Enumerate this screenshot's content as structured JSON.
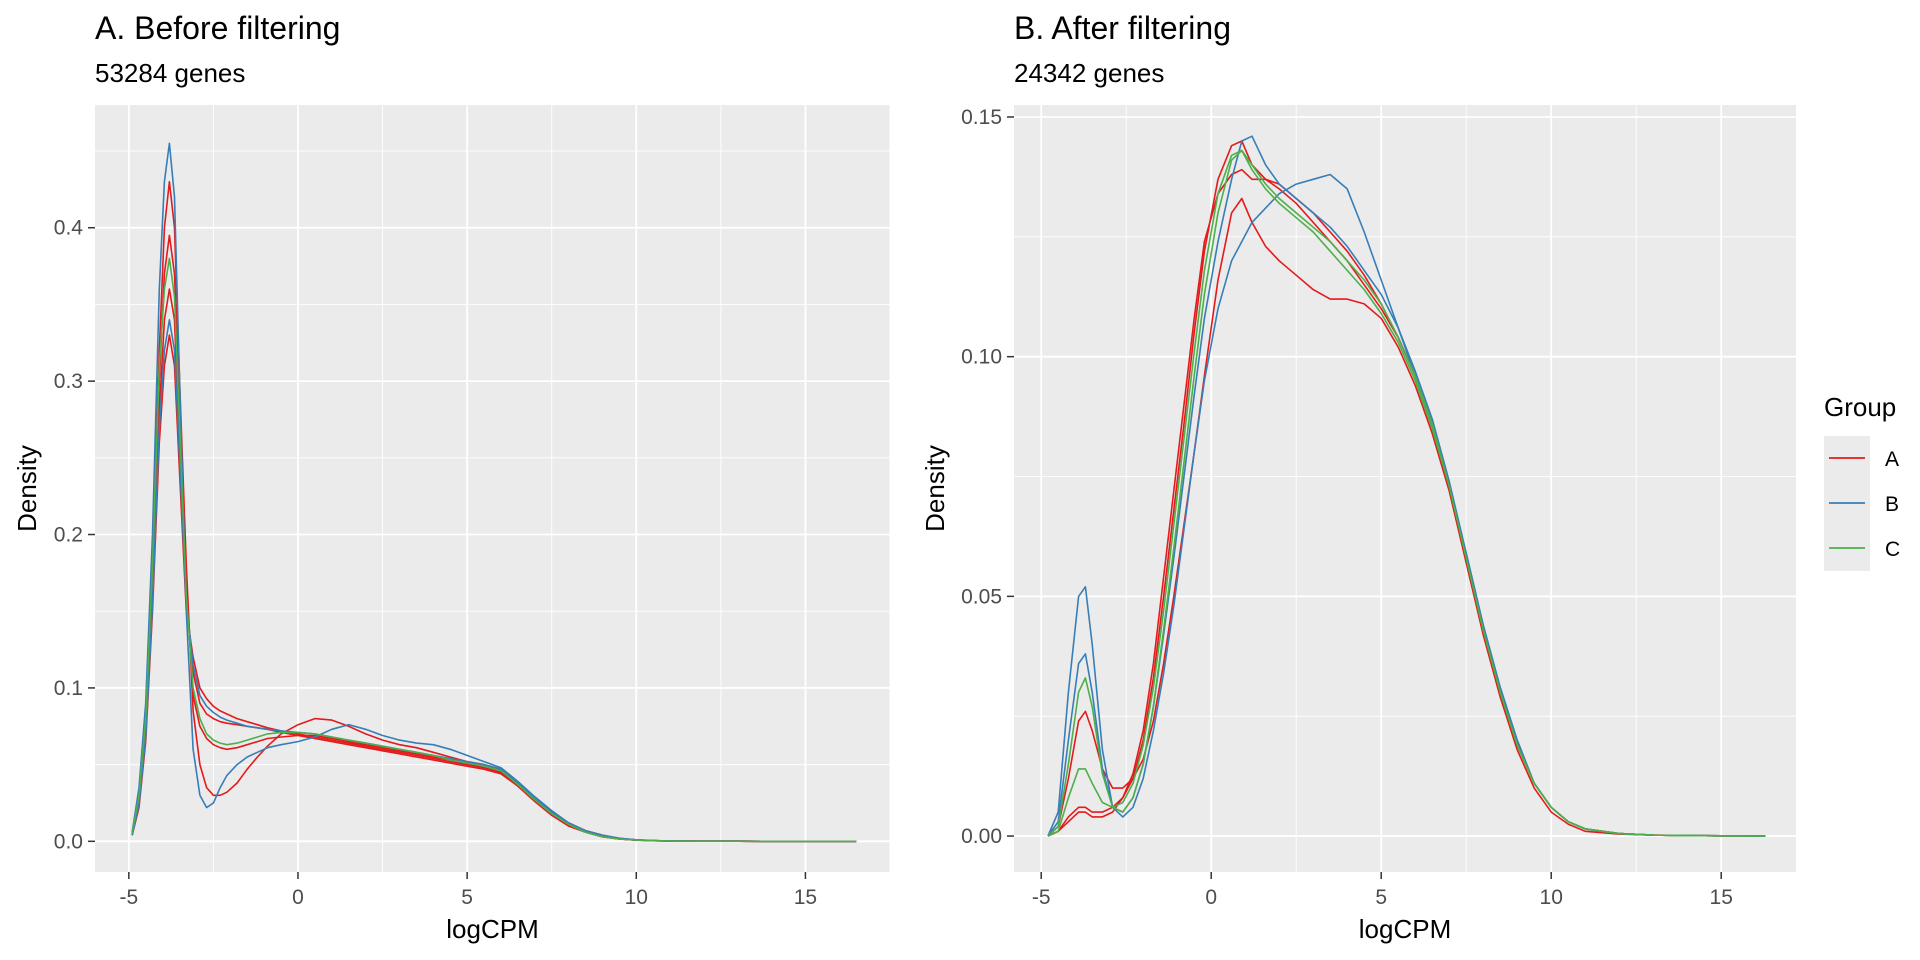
{
  "chart_data": [
    {
      "type": "line",
      "title": "A. Before filtering",
      "subtitle": "53284 genes",
      "xlabel": "logCPM",
      "ylabel": "Density",
      "xlim": [
        -6.0,
        17.5
      ],
      "ylim": [
        -0.02,
        0.48
      ],
      "x_ticks": [
        "-5",
        "0",
        "5",
        "10",
        "15"
      ],
      "y_ticks": [
        "0.0",
        "0.1",
        "0.2",
        "0.3",
        "0.4"
      ],
      "grid": true,
      "x": [
        -4.9,
        -4.7,
        -4.5,
        -4.3,
        -4.1,
        -3.95,
        -3.8,
        -3.65,
        -3.5,
        -3.3,
        -3.1,
        -2.9,
        -2.7,
        -2.5,
        -2.3,
        -2.1,
        -1.8,
        -1.5,
        -1.2,
        -0.9,
        -0.5,
        0,
        0.5,
        1,
        1.5,
        2,
        2.5,
        3,
        3.5,
        4,
        4.5,
        5,
        5.5,
        6,
        6.5,
        7,
        7.5,
        8,
        8.5,
        9,
        9.5,
        10,
        10.5,
        11,
        12,
        13,
        14,
        15,
        16,
        16.5
      ],
      "series": [
        {
          "group": "A",
          "values": [
            0.005,
            0.03,
            0.08,
            0.18,
            0.32,
            0.4,
            0.43,
            0.4,
            0.3,
            0.18,
            0.085,
            0.05,
            0.035,
            0.03,
            0.03,
            0.032,
            0.038,
            0.047,
            0.055,
            0.062,
            0.07,
            0.076,
            0.08,
            0.079,
            0.075,
            0.07,
            0.066,
            0.063,
            0.061,
            0.058,
            0.055,
            0.052,
            0.05,
            0.047,
            0.038,
            0.028,
            0.019,
            0.012,
            0.007,
            0.004,
            0.002,
            0.001,
            0.0005,
            0.0002,
            0.0001,
            5e-05,
            0,
            0,
            0,
            0
          ]
        },
        {
          "group": "A",
          "values": [
            0.005,
            0.028,
            0.075,
            0.17,
            0.3,
            0.37,
            0.395,
            0.37,
            0.28,
            0.17,
            0.095,
            0.075,
            0.067,
            0.063,
            0.061,
            0.06,
            0.061,
            0.063,
            0.065,
            0.067,
            0.068,
            0.069,
            0.069,
            0.067,
            0.065,
            0.063,
            0.061,
            0.059,
            0.057,
            0.055,
            0.053,
            0.051,
            0.049,
            0.046,
            0.037,
            0.027,
            0.018,
            0.011,
            0.006,
            0.003,
            0.0015,
            0.0008,
            0.0004,
            0.0002,
            0.0001,
            5e-05,
            0,
            0,
            0,
            0
          ]
        },
        {
          "group": "A",
          "values": [
            0.004,
            0.025,
            0.07,
            0.16,
            0.28,
            0.34,
            0.36,
            0.34,
            0.26,
            0.16,
            0.11,
            0.09,
            0.083,
            0.08,
            0.078,
            0.077,
            0.076,
            0.075,
            0.074,
            0.073,
            0.071,
            0.069,
            0.067,
            0.065,
            0.063,
            0.061,
            0.059,
            0.057,
            0.055,
            0.053,
            0.051,
            0.049,
            0.047,
            0.044,
            0.036,
            0.026,
            0.017,
            0.01,
            0.006,
            0.003,
            0.0015,
            0.0008,
            0.0004,
            0.0002,
            0.0001,
            5e-05,
            0,
            0,
            0,
            0
          ]
        },
        {
          "group": "A",
          "values": [
            0.004,
            0.022,
            0.065,
            0.15,
            0.26,
            0.31,
            0.33,
            0.31,
            0.24,
            0.15,
            0.12,
            0.1,
            0.093,
            0.088,
            0.085,
            0.083,
            0.08,
            0.078,
            0.076,
            0.074,
            0.072,
            0.07,
            0.068,
            0.066,
            0.064,
            0.062,
            0.06,
            0.058,
            0.056,
            0.054,
            0.052,
            0.05,
            0.048,
            0.045,
            0.036,
            0.026,
            0.017,
            0.01,
            0.006,
            0.003,
            0.0015,
            0.0008,
            0.0004,
            0.0002,
            0.0001,
            5e-05,
            2e-05,
            1e-05,
            0,
            0
          ]
        },
        {
          "group": "B",
          "values": [
            0.006,
            0.035,
            0.09,
            0.2,
            0.36,
            0.43,
            0.455,
            0.42,
            0.3,
            0.15,
            0.06,
            0.03,
            0.022,
            0.025,
            0.035,
            0.043,
            0.05,
            0.055,
            0.058,
            0.061,
            0.063,
            0.065,
            0.068,
            0.073,
            0.076,
            0.073,
            0.069,
            0.066,
            0.064,
            0.063,
            0.06,
            0.056,
            0.052,
            0.048,
            0.039,
            0.029,
            0.02,
            0.012,
            0.007,
            0.004,
            0.002,
            0.001,
            0.0005,
            0.0002,
            0.0001,
            5e-05,
            2e-05,
            1e-05,
            0,
            0
          ]
        },
        {
          "group": "B",
          "values": [
            0.004,
            0.024,
            0.068,
            0.155,
            0.27,
            0.32,
            0.34,
            0.32,
            0.25,
            0.155,
            0.115,
            0.095,
            0.088,
            0.084,
            0.081,
            0.079,
            0.077,
            0.075,
            0.074,
            0.073,
            0.072,
            0.071,
            0.07,
            0.068,
            0.066,
            0.064,
            0.062,
            0.06,
            0.058,
            0.056,
            0.054,
            0.052,
            0.05,
            0.047,
            0.038,
            0.028,
            0.019,
            0.011,
            0.006,
            0.003,
            0.0015,
            0.0008,
            0.0004,
            0.0002,
            0.0001,
            5e-05,
            2e-05,
            1e-05,
            0,
            0
          ]
        },
        {
          "group": "C",
          "values": [
            0.005,
            0.03,
            0.08,
            0.18,
            0.31,
            0.36,
            0.38,
            0.355,
            0.27,
            0.16,
            0.1,
            0.08,
            0.07,
            0.066,
            0.064,
            0.063,
            0.064,
            0.066,
            0.068,
            0.07,
            0.071,
            0.071,
            0.07,
            0.068,
            0.066,
            0.064,
            0.062,
            0.06,
            0.058,
            0.056,
            0.053,
            0.051,
            0.049,
            0.046,
            0.037,
            0.027,
            0.018,
            0.011,
            0.006,
            0.003,
            0.0015,
            0.0008,
            0.0004,
            0.0002,
            0.0001,
            5e-05,
            0,
            0,
            0,
            0
          ]
        }
      ]
    },
    {
      "type": "line",
      "title": "B. After filtering",
      "subtitle": "24342 genes",
      "xlabel": "logCPM",
      "ylabel": "Density",
      "xlim": [
        -5.8,
        17.2
      ],
      "ylim": [
        -0.0075,
        0.1525
      ],
      "x_ticks": [
        "-5",
        "0",
        "5",
        "10",
        "15"
      ],
      "y_ticks": [
        "0.00",
        "0.05",
        "0.10",
        "0.15"
      ],
      "grid": true,
      "x": [
        -4.8,
        -4.5,
        -4.2,
        -3.9,
        -3.7,
        -3.5,
        -3.2,
        -2.9,
        -2.6,
        -2.3,
        -2,
        -1.7,
        -1.4,
        -1.1,
        -0.8,
        -0.5,
        -0.2,
        0.2,
        0.6,
        0.9,
        1.2,
        1.6,
        2,
        2.5,
        3,
        3.5,
        4,
        4.5,
        5,
        5.5,
        6,
        6.5,
        7,
        7.5,
        8,
        8.5,
        9,
        9.5,
        10,
        10.5,
        11,
        12,
        13,
        14,
        15,
        16.3
      ],
      "series": [
        {
          "group": "A",
          "values": [
            0,
            0.002,
            0.012,
            0.024,
            0.026,
            0.022,
            0.014,
            0.01,
            0.01,
            0.012,
            0.016,
            0.024,
            0.036,
            0.05,
            0.065,
            0.08,
            0.096,
            0.116,
            0.13,
            0.133,
            0.128,
            0.123,
            0.12,
            0.117,
            0.114,
            0.112,
            0.112,
            0.111,
            0.108,
            0.102,
            0.094,
            0.084,
            0.072,
            0.057,
            0.042,
            0.029,
            0.018,
            0.01,
            0.005,
            0.0025,
            0.001,
            0.0004,
            0.0002,
            0.0001,
            5e-05,
            0
          ]
        },
        {
          "group": "A",
          "values": [
            0,
            0.001,
            0.004,
            0.006,
            0.006,
            0.005,
            0.005,
            0.006,
            0.008,
            0.012,
            0.02,
            0.033,
            0.05,
            0.068,
            0.086,
            0.105,
            0.122,
            0.137,
            0.144,
            0.145,
            0.14,
            0.137,
            0.135,
            0.132,
            0.128,
            0.124,
            0.12,
            0.115,
            0.11,
            0.104,
            0.096,
            0.086,
            0.073,
            0.058,
            0.043,
            0.03,
            0.019,
            0.011,
            0.006,
            0.003,
            0.0015,
            0.0005,
            0.0002,
            0.0001,
            5e-05,
            0
          ]
        },
        {
          "group": "A",
          "values": [
            0,
            0.001,
            0.003,
            0.005,
            0.005,
            0.004,
            0.004,
            0.005,
            0.008,
            0.013,
            0.022,
            0.036,
            0.054,
            0.072,
            0.09,
            0.108,
            0.124,
            0.134,
            0.138,
            0.139,
            0.137,
            0.137,
            0.136,
            0.133,
            0.13,
            0.126,
            0.122,
            0.117,
            0.111,
            0.104,
            0.096,
            0.086,
            0.073,
            0.058,
            0.043,
            0.03,
            0.019,
            0.011,
            0.006,
            0.003,
            0.0015,
            0.0005,
            0.0002,
            0.0001,
            5e-05,
            0
          ]
        },
        {
          "group": "B",
          "values": [
            0,
            0.005,
            0.03,
            0.05,
            0.052,
            0.04,
            0.018,
            0.006,
            0.004,
            0.006,
            0.012,
            0.022,
            0.034,
            0.048,
            0.064,
            0.08,
            0.095,
            0.11,
            0.12,
            0.124,
            0.128,
            0.131,
            0.134,
            0.136,
            0.137,
            0.138,
            0.135,
            0.126,
            0.116,
            0.106,
            0.096,
            0.086,
            0.073,
            0.059,
            0.044,
            0.031,
            0.02,
            0.011,
            0.006,
            0.003,
            0.0015,
            0.0005,
            0.0002,
            0.0001,
            5e-05,
            0
          ]
        },
        {
          "group": "B",
          "values": [
            0,
            0.003,
            0.02,
            0.036,
            0.038,
            0.03,
            0.014,
            0.006,
            0.005,
            0.008,
            0.015,
            0.027,
            0.042,
            0.058,
            0.075,
            0.092,
            0.108,
            0.124,
            0.137,
            0.145,
            0.146,
            0.14,
            0.136,
            0.133,
            0.13,
            0.127,
            0.123,
            0.118,
            0.113,
            0.106,
            0.097,
            0.087,
            0.074,
            0.059,
            0.044,
            0.031,
            0.02,
            0.011,
            0.006,
            0.003,
            0.0015,
            0.0005,
            0.0002,
            0.0001,
            5e-05,
            0
          ]
        },
        {
          "group": "C",
          "values": [
            0,
            0.002,
            0.015,
            0.03,
            0.033,
            0.027,
            0.013,
            0.006,
            0.005,
            0.008,
            0.015,
            0.027,
            0.043,
            0.06,
            0.078,
            0.096,
            0.113,
            0.13,
            0.141,
            0.143,
            0.14,
            0.136,
            0.133,
            0.13,
            0.127,
            0.124,
            0.12,
            0.116,
            0.111,
            0.104,
            0.096,
            0.086,
            0.073,
            0.058,
            0.043,
            0.03,
            0.019,
            0.011,
            0.006,
            0.003,
            0.0015,
            0.0005,
            0.0002,
            0.0001,
            5e-05,
            0
          ]
        },
        {
          "group": "C",
          "values": [
            0,
            0.001,
            0.008,
            0.014,
            0.014,
            0.011,
            0.007,
            0.006,
            0.007,
            0.011,
            0.019,
            0.031,
            0.047,
            0.065,
            0.083,
            0.101,
            0.118,
            0.134,
            0.142,
            0.143,
            0.139,
            0.135,
            0.132,
            0.129,
            0.126,
            0.122,
            0.118,
            0.114,
            0.109,
            0.103,
            0.095,
            0.085,
            0.073,
            0.058,
            0.043,
            0.03,
            0.019,
            0.011,
            0.006,
            0.003,
            0.0015,
            0.0005,
            0.0002,
            0.0001,
            5e-05,
            0
          ]
        }
      ]
    }
  ],
  "legend": {
    "title": "Group",
    "placement": "right",
    "items": [
      {
        "label": "A",
        "color": "#e41a1c"
      },
      {
        "label": "B",
        "color": "#377eb8"
      },
      {
        "label": "C",
        "color": "#4daf4a"
      }
    ]
  },
  "style": {
    "panel_background": "#ebebeb",
    "grid_color": "#ffffff",
    "tick_color": "#333333"
  }
}
